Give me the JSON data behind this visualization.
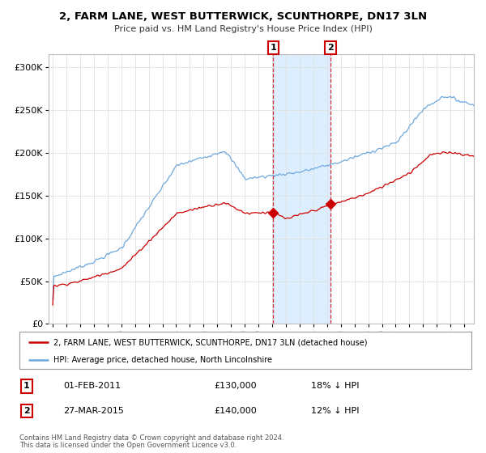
{
  "title": "2, FARM LANE, WEST BUTTERWICK, SCUNTHORPE, DN17 3LN",
  "subtitle": "Price paid vs. HM Land Registry's House Price Index (HPI)",
  "ylabel_ticks": [
    "£0",
    "£50K",
    "£100K",
    "£150K",
    "£200K",
    "£250K",
    "£300K"
  ],
  "ytick_values": [
    0,
    50000,
    100000,
    150000,
    200000,
    250000,
    300000
  ],
  "ylim": [
    0,
    315000
  ],
  "sale1_date": "01-FEB-2011",
  "sale1_price": 130000,
  "sale1_label": "18% ↓ HPI",
  "sale1_x": 2011.08,
  "sale2_date": "27-MAR-2015",
  "sale2_price": 140000,
  "sale2_label": "12% ↓ HPI",
  "sale2_x": 2015.25,
  "hpi_color": "#6fa8dc",
  "price_color": "#cc0000",
  "shaded_color": "#ddeeff",
  "legend_label_price": "2, FARM LANE, WEST BUTTERWICK, SCUNTHORPE, DN17 3LN (detached house)",
  "legend_label_hpi": "HPI: Average price, detached house, North Lincolnshire",
  "footer1": "Contains HM Land Registry data © Crown copyright and database right 2024.",
  "footer2": "This data is licensed under the Open Government Licence v3.0.",
  "background_color": "#ffffff",
  "plot_bg_color": "#ffffff",
  "grid_color": "#e0e0e0"
}
